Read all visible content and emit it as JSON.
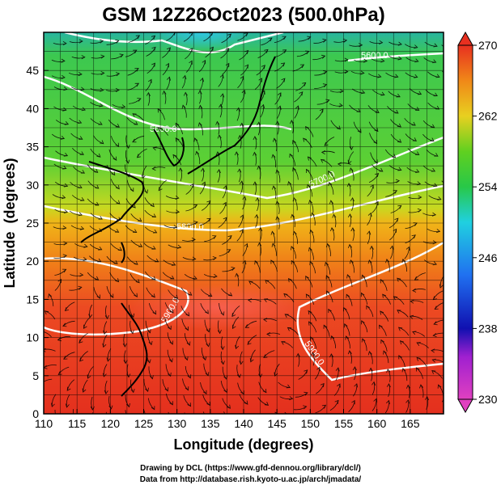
{
  "chart_data": {
    "type": "heatmap",
    "title": "GSM 12Z26Oct2023 (500.0hPa)",
    "xlabel": "Longitude (degrees)",
    "ylabel": "Latitude  (degrees)",
    "xlim": [
      110,
      170
    ],
    "ylim": [
      0,
      50
    ],
    "x_ticks": [
      "110",
      "115",
      "120",
      "125",
      "130",
      "135",
      "140",
      "145",
      "150",
      "155",
      "160",
      "165"
    ],
    "y_ticks": [
      "0",
      "5",
      "10",
      "15",
      "20",
      "25",
      "30",
      "35",
      "40",
      "45"
    ],
    "colorbar": {
      "min": 230,
      "max": 270,
      "ticks": [
        "230",
        "238",
        "246",
        "254",
        "262",
        "270"
      ]
    },
    "contour_labels": [
      "5600.0",
      "5600.0",
      "5700.0",
      "5800.0",
      "5900.0",
      "5900.0"
    ],
    "grid": true,
    "colors": {
      "magenta": "#e040b0",
      "blue": "#2060e0",
      "cyan": "#20c0d8",
      "green": "#3cc83c",
      "yellow": "#e8d020",
      "orange": "#f08c14",
      "red": "#e8302a"
    }
  },
  "credits": {
    "line1": "Drawing by DCL (https://www.gfd-dennou.org/library/dcl/)",
    "line2": "Data from http://database.rish.kyoto-u.ac.jp/arch/jmadata/"
  }
}
